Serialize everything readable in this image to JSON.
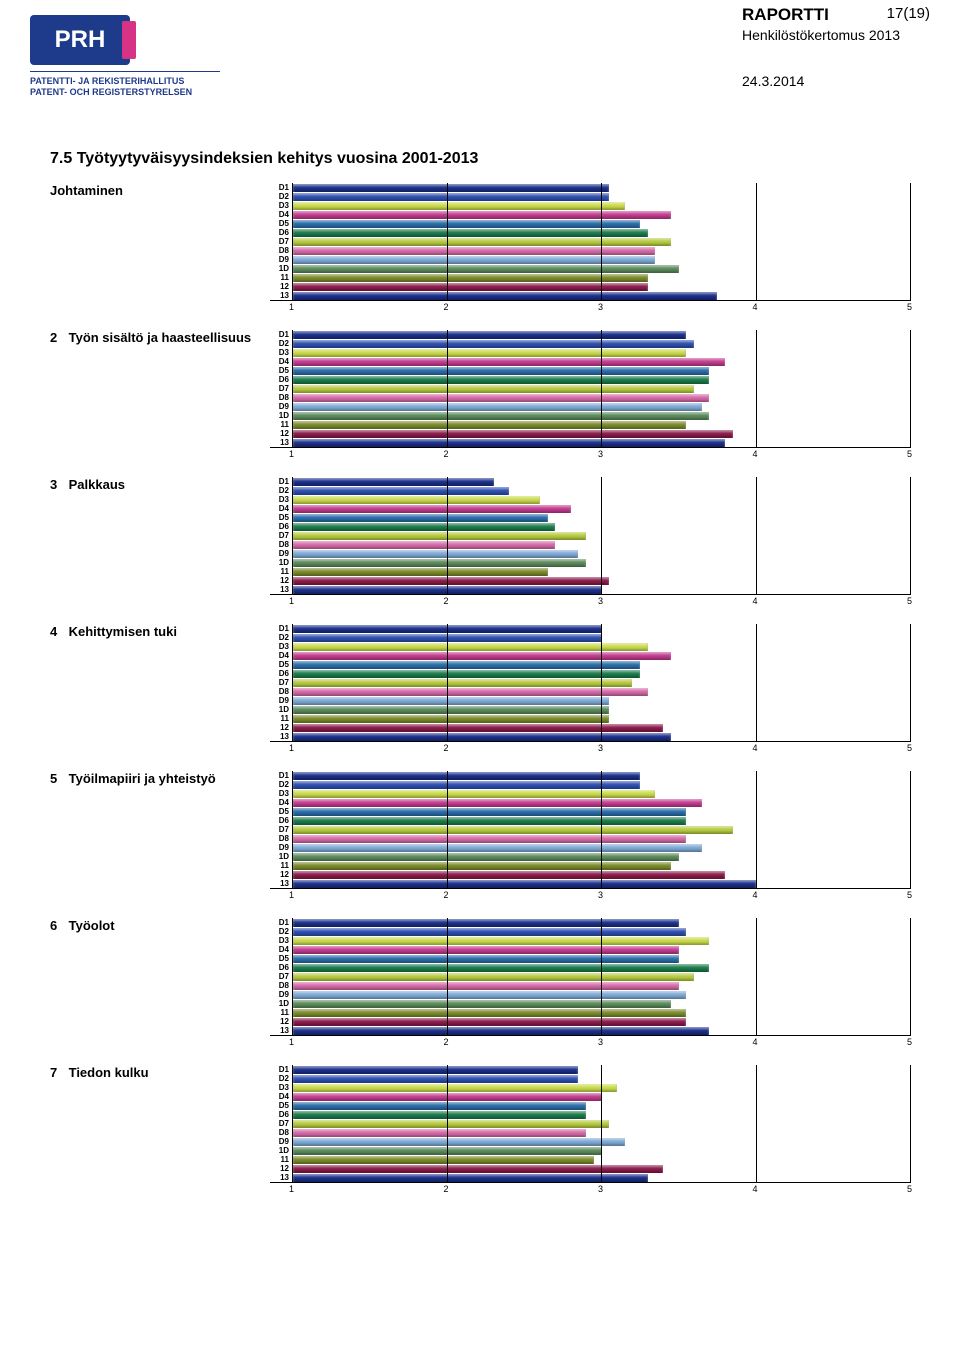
{
  "header": {
    "logo_text": "PRH",
    "logo_sub1": "PATENTTI- JA REKISTERIHALLITUS",
    "logo_sub2": "PATENT- OCH REGISTERSTYRELSEN",
    "doc_type": "RAPORTTI",
    "doc_subtitle": "Henkilöstökertomus 2013",
    "doc_date": "24.3.2014",
    "page_num": "17(19)"
  },
  "main_title": "7.5 Työtyytyväisyysindeksien kehitys vuosina 2001-2013",
  "axis": {
    "min": 1,
    "max": 5,
    "ticks": [
      1,
      2,
      3,
      4,
      5
    ]
  },
  "row_labels": [
    "D1",
    "D2",
    "D3",
    "D4",
    "D5",
    "D6",
    "D7",
    "D8",
    "D9",
    "1D",
    "11",
    "12",
    "13"
  ],
  "colors": {
    "D1": "#1a2f8a",
    "D2": "#2e4fb0",
    "D3": "#c9d94a",
    "D4": "#c23b8e",
    "D5": "#2a6da8",
    "D6": "#1a7a4a",
    "D7": "#b5c93e",
    "D8": "#d468a8",
    "D9": "#7da8d4",
    "1D": "#5a8a5a",
    "11": "#7a8a2a",
    "12": "#8a1a4a",
    "13": "#1a2f8a"
  },
  "sections": [
    {
      "num": "",
      "label": "Johtaminen",
      "values": {
        "D1": 3.05,
        "D2": 3.05,
        "D3": 3.15,
        "D4": 3.45,
        "D5": 3.25,
        "D6": 3.3,
        "D7": 3.45,
        "D8": 3.35,
        "D9": 3.35,
        "1D": 3.5,
        "11": 3.3,
        "12": 3.3,
        "13": 3.75
      }
    },
    {
      "num": "2",
      "label": "Työn sisältö ja haasteellisuus",
      "values": {
        "D1": 3.55,
        "D2": 3.6,
        "D3": 3.55,
        "D4": 3.8,
        "D5": 3.7,
        "D6": 3.7,
        "D7": 3.6,
        "D8": 3.7,
        "D9": 3.65,
        "1D": 3.7,
        "11": 3.55,
        "12": 3.85,
        "13": 3.8
      }
    },
    {
      "num": "3",
      "label": "Palkkaus",
      "values": {
        "D1": 2.3,
        "D2": 2.4,
        "D3": 2.6,
        "D4": 2.8,
        "D5": 2.65,
        "D6": 2.7,
        "D7": 2.9,
        "D8": 2.7,
        "D9": 2.85,
        "1D": 2.9,
        "11": 2.65,
        "12": 3.05,
        "13": 3.0
      }
    },
    {
      "num": "4",
      "label": "Kehittymisen tuki",
      "values": {
        "D1": 3.0,
        "D2": 3.0,
        "D3": 3.3,
        "D4": 3.45,
        "D5": 3.25,
        "D6": 3.25,
        "D7": 3.2,
        "D8": 3.3,
        "D9": 3.05,
        "1D": 3.05,
        "11": 3.05,
        "12": 3.4,
        "13": 3.45
      }
    },
    {
      "num": "5",
      "label": "Työilmapiiri ja yhteistyö",
      "values": {
        "D1": 3.25,
        "D2": 3.25,
        "D3": 3.35,
        "D4": 3.65,
        "D5": 3.55,
        "D6": 3.55,
        "D7": 3.85,
        "D8": 3.55,
        "D9": 3.65,
        "1D": 3.5,
        "11": 3.45,
        "12": 3.8,
        "13": 4.0
      }
    },
    {
      "num": "6",
      "label": "Työolot",
      "values": {
        "D1": 3.5,
        "D2": 3.55,
        "D3": 3.7,
        "D4": 3.5,
        "D5": 3.5,
        "D6": 3.7,
        "D7": 3.6,
        "D8": 3.5,
        "D9": 3.55,
        "1D": 3.45,
        "11": 3.55,
        "12": 3.55,
        "13": 3.7
      }
    },
    {
      "num": "7",
      "label": "Tiedon kulku",
      "values": {
        "D1": 2.85,
        "D2": 2.85,
        "D3": 3.1,
        "D4": 3.0,
        "D5": 2.9,
        "D6": 2.9,
        "D7": 3.05,
        "D8": 2.9,
        "D9": 3.15,
        "1D": 3.0,
        "11": 2.95,
        "12": 3.4,
        "13": 3.3
      }
    }
  ]
}
